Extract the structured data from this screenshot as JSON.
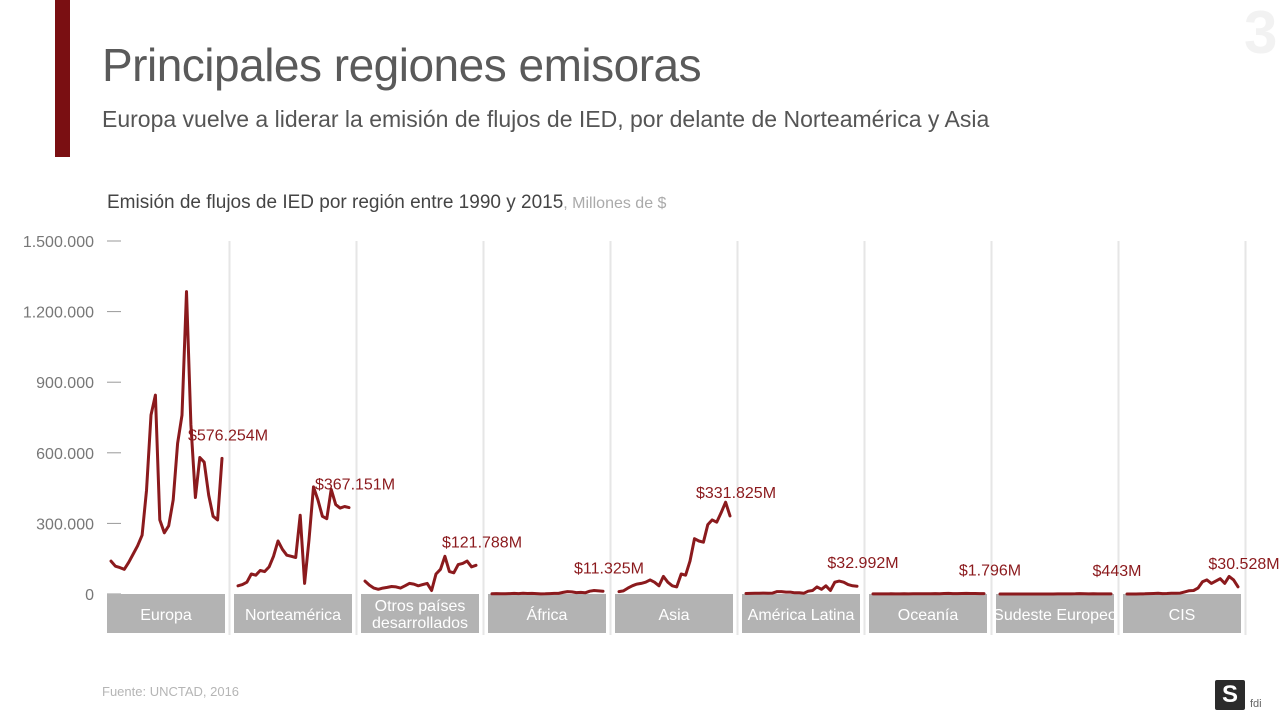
{
  "header": {
    "title": "Principales regiones emisoras",
    "subtitle": "Europa vuelve a liderar la emisión de flujos de IED, por delante de Norteamérica y Asia",
    "page_number": "3"
  },
  "chart_data": {
    "type": "line",
    "title": "Emisión de flujos de IED por región entre 1990 y 2015",
    "units": ", Millones de $",
    "ylim": [
      0,
      1500000
    ],
    "yticks": [
      0,
      300000,
      600000,
      900000,
      1200000,
      1500000
    ],
    "ytick_labels": [
      "0",
      "300.000",
      "600.000",
      "900.000",
      "1.200.000",
      "1.500.000"
    ],
    "years": [
      1990,
      1991,
      1992,
      1993,
      1994,
      1995,
      1996,
      1997,
      1998,
      1999,
      2000,
      2001,
      2002,
      2003,
      2004,
      2005,
      2006,
      2007,
      2008,
      2009,
      2010,
      2011,
      2012,
      2013,
      2014,
      2015
    ],
    "series": [
      {
        "name": "Europa",
        "end_label": "$576.254M",
        "values": [
          140000,
          118000,
          112000,
          105000,
          135000,
          170000,
          205000,
          250000,
          440000,
          760000,
          845000,
          315000,
          260000,
          290000,
          400000,
          640000,
          760000,
          1285000,
          720000,
          410000,
          580000,
          560000,
          420000,
          330000,
          315000,
          576254
        ]
      },
      {
        "name": "Norteamérica",
        "end_label": "$367.151M",
        "values": [
          35000,
          40000,
          50000,
          85000,
          80000,
          100000,
          95000,
          115000,
          160000,
          225000,
          190000,
          165000,
          160000,
          155000,
          335000,
          45000,
          230000,
          455000,
          400000,
          330000,
          320000,
          445000,
          380000,
          365000,
          372000,
          367151
        ]
      },
      {
        "name": "Otros países desarrollados",
        "end_label": "$121.788M",
        "values": [
          55000,
          38000,
          25000,
          20000,
          25000,
          28000,
          32000,
          30000,
          25000,
          35000,
          45000,
          42000,
          35000,
          40000,
          45000,
          15000,
          85000,
          105000,
          160000,
          95000,
          90000,
          125000,
          130000,
          140000,
          115000,
          121788
        ]
      },
      {
        "name": "África",
        "end_label": "$11.325M",
        "values": [
          1000,
          1500,
          1200,
          1000,
          1500,
          2500,
          1500,
          3000,
          2000,
          2500,
          1500,
          500,
          1000,
          1500,
          2500,
          2500,
          7000,
          10000,
          9000,
          6000,
          7000,
          5000,
          12000,
          15000,
          13000,
          11325
        ]
      },
      {
        "name": "Asia",
        "end_label": "$331.825M",
        "values": [
          10000,
          13000,
          25000,
          35000,
          42000,
          45000,
          50000,
          60000,
          50000,
          35000,
          75000,
          50000,
          35000,
          30000,
          85000,
          80000,
          140000,
          235000,
          225000,
          220000,
          295000,
          315000,
          305000,
          345000,
          390000,
          331825
        ]
      },
      {
        "name": "América Latina",
        "end_label": "$32.992M",
        "values": [
          2000,
          2500,
          3000,
          3000,
          4000,
          3500,
          4000,
          10000,
          10000,
          8000,
          8000,
          5000,
          5000,
          3000,
          12000,
          15000,
          30000,
          20000,
          35000,
          15000,
          50000,
          55000,
          50000,
          40000,
          35000,
          32992
        ]
      },
      {
        "name": "Oceanía",
        "end_label": "$1.796M",
        "values": [
          500,
          600,
          500,
          600,
          700,
          500,
          500,
          700,
          600,
          800,
          800,
          900,
          800,
          1000,
          1500,
          1200,
          2000,
          2500,
          1500,
          1500,
          2000,
          2500,
          2200,
          2000,
          1800,
          1796
        ]
      },
      {
        "name": "Sudeste Europeo",
        "end_label": "$443M",
        "values": [
          0,
          0,
          0,
          0,
          0,
          0,
          100,
          100,
          100,
          200,
          200,
          100,
          200,
          300,
          300,
          400,
          500,
          900,
          1500,
          1000,
          600,
          800,
          500,
          400,
          600,
          443
        ]
      },
      {
        "name": "CIS",
        "end_label": "$30.528M",
        "values": [
          0,
          0,
          0,
          500,
          1000,
          1500,
          2000,
          3000,
          1500,
          2000,
          3000,
          3000,
          4000,
          9000,
          14000,
          15000,
          25000,
          52000,
          60000,
          45000,
          55000,
          65000,
          45000,
          75000,
          60000,
          30528
        ]
      }
    ]
  },
  "footer": {
    "source": "Fuente: UNCTAD, 2016",
    "logo_text": "S",
    "logo_sub": "fdi"
  }
}
